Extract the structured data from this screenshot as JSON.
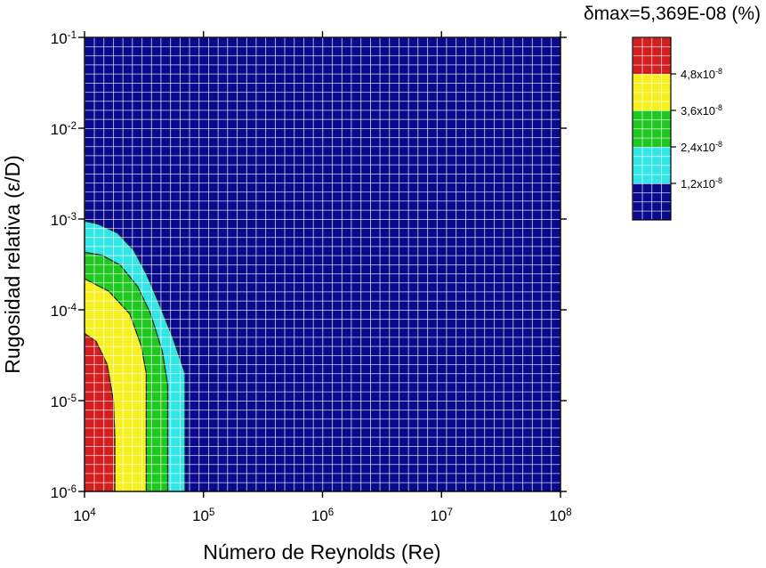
{
  "chart_data": {
    "type": "heatmap",
    "subtype": "filled-contour",
    "title": "δmax=5,369E-08 (%)",
    "xlabel": "Número de Reynolds (Re)",
    "ylabel": "Rugosidad relativa (ε/D)",
    "x_scale": "log",
    "y_scale": "log",
    "xlim": [
      10000,
      100000000
    ],
    "ylim": [
      1e-06,
      0.1
    ],
    "x_ticks": [
      {
        "value": 10000,
        "base": "10",
        "exp": "4"
      },
      {
        "value": 100000,
        "base": "10",
        "exp": "5"
      },
      {
        "value": 1000000,
        "base": "10",
        "exp": "6"
      },
      {
        "value": 10000000,
        "base": "10",
        "exp": "7"
      },
      {
        "value": 100000000,
        "base": "10",
        "exp": "8"
      }
    ],
    "y_ticks": [
      {
        "value": 1e-06,
        "base": "10",
        "exp": "-6"
      },
      {
        "value": 1e-05,
        "base": "10",
        "exp": "-5"
      },
      {
        "value": 0.0001,
        "base": "10",
        "exp": "-4"
      },
      {
        "value": 0.001,
        "base": "10",
        "exp": "-3"
      },
      {
        "value": 0.01,
        "base": "10",
        "exp": "-2"
      },
      {
        "value": 0.1,
        "base": "10",
        "exp": "-1"
      }
    ],
    "grid": true,
    "legend_position": "top-right",
    "levels": [
      {
        "lower": 0,
        "upper": 1.2e-08,
        "color": "#0a0a8c"
      },
      {
        "lower": 1.2e-08,
        "upper": 2.4e-08,
        "color": "#33e6e6"
      },
      {
        "lower": 2.4e-08,
        "upper": 3.6e-08,
        "color": "#1ec81e"
      },
      {
        "lower": 3.6e-08,
        "upper": 4.8e-08,
        "color": "#f5f01e"
      },
      {
        "lower": 4.8e-08,
        "upper": 5.369e-08,
        "color": "#d21e1e"
      }
    ],
    "legend_labels": [
      {
        "value": 1.2e-08,
        "base": "1,2x10",
        "exp": "-8"
      },
      {
        "value": 2.4e-08,
        "base": "2,4x10",
        "exp": "-8"
      },
      {
        "value": 3.6e-08,
        "base": "3,6x10",
        "exp": "-8"
      },
      {
        "value": 4.8e-08,
        "base": "4,8x10",
        "exp": "-8"
      }
    ],
    "contours": [
      {
        "level": 1.2e-08,
        "points": [
          [
            10000,
            0.00095
          ],
          [
            13000,
            0.00088
          ],
          [
            19000,
            0.0007
          ],
          [
            26000,
            0.00045
          ],
          [
            33000,
            0.00025
          ],
          [
            42000,
            0.00012
          ],
          [
            55000,
            5e-05
          ],
          [
            70000,
            2e-05
          ],
          [
            70000,
            1e-06
          ]
        ]
      },
      {
        "level": 2.4e-08,
        "points": [
          [
            10000,
            0.00043
          ],
          [
            14000,
            0.0004
          ],
          [
            20000,
            0.00031
          ],
          [
            28000,
            0.00018
          ],
          [
            36000,
            9e-05
          ],
          [
            45000,
            3.5e-05
          ],
          [
            50000,
            1.5e-05
          ],
          [
            50000,
            1e-06
          ]
        ]
      },
      {
        "level": 3.6e-08,
        "points": [
          [
            10000,
            0.00022
          ],
          [
            16000,
            0.00016
          ],
          [
            24000,
            9e-05
          ],
          [
            30000,
            4e-05
          ],
          [
            33000,
            2e-05
          ],
          [
            33000,
            1e-06
          ]
        ]
      },
      {
        "level": 4.8e-08,
        "points": [
          [
            10000,
            5.5e-05
          ],
          [
            12500,
            4.5e-05
          ],
          [
            15500,
            2.5e-05
          ],
          [
            17500,
            1e-05
          ],
          [
            18000,
            4e-06
          ],
          [
            18000,
            1e-06
          ]
        ]
      }
    ]
  },
  "colors": {
    "grid_line": "#ffffff",
    "contour_line": "#222222",
    "axis": "#000000"
  }
}
